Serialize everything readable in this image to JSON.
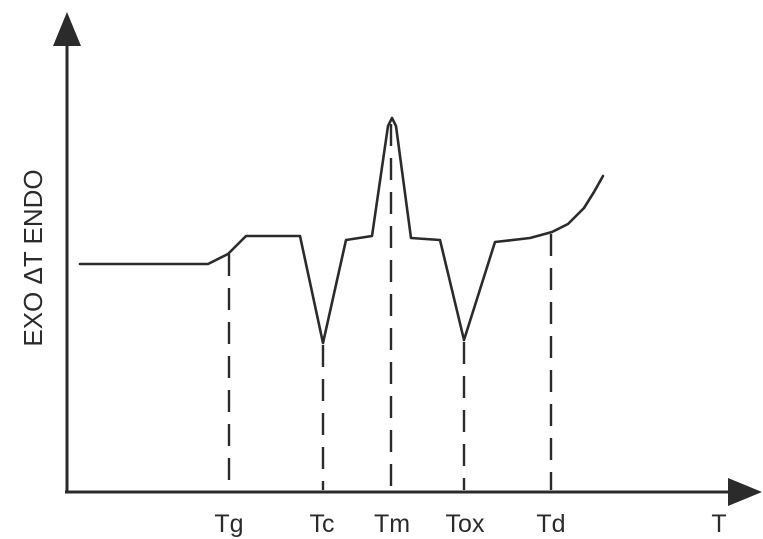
{
  "diagram": {
    "y_axis_label": "EXO ΔT ENDO",
    "x_axis_label": "T",
    "markers": [
      "Tg",
      "Tc",
      "Tm",
      "Tox",
      "Td"
    ]
  }
}
